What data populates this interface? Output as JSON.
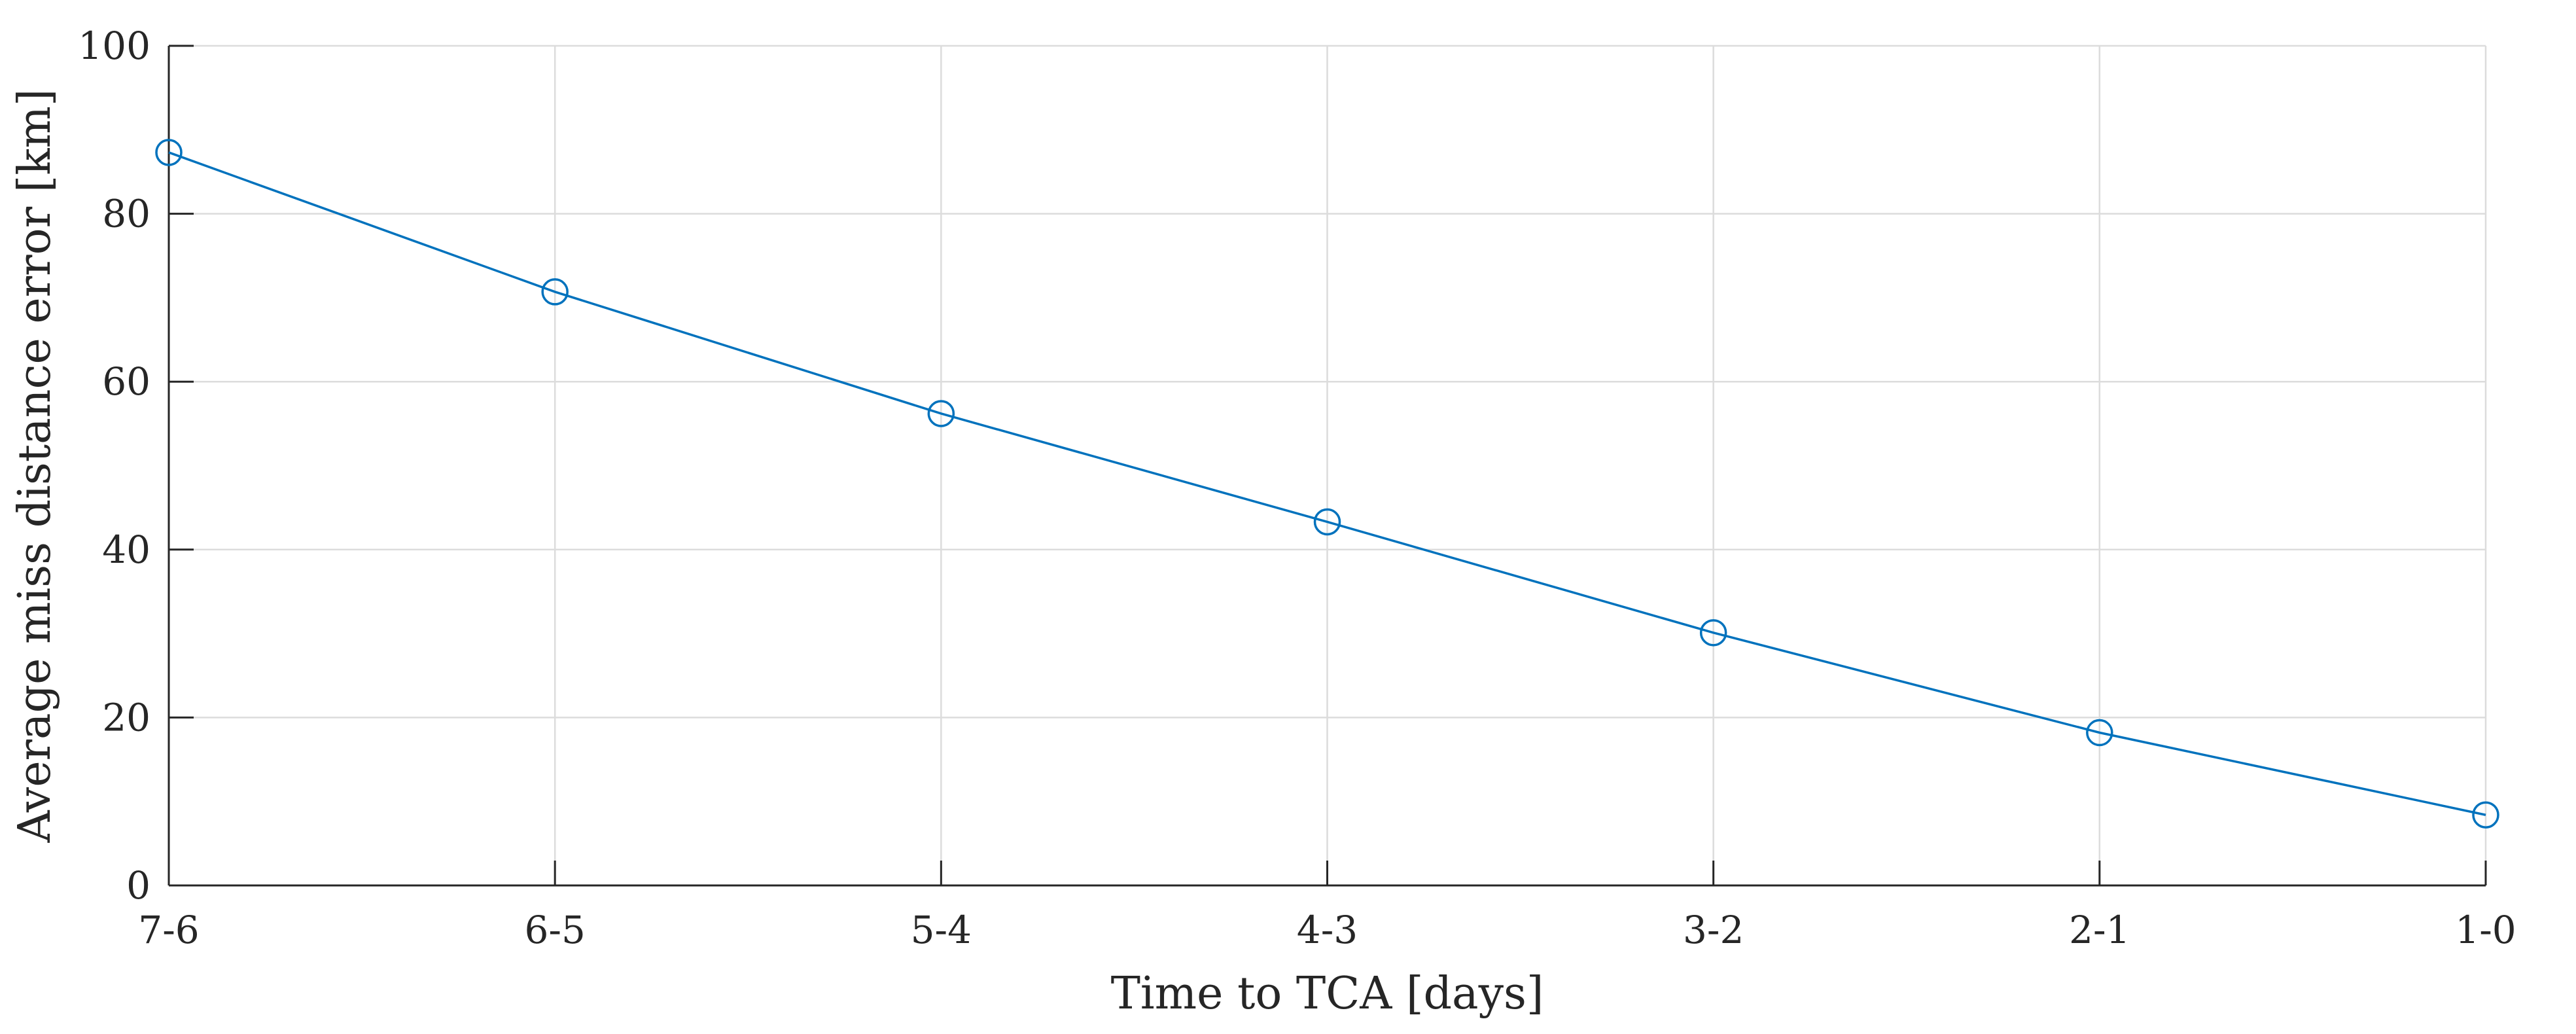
{
  "chart_data": {
    "type": "line",
    "title": "",
    "xlabel": "Time to TCA [days]",
    "ylabel": "Average miss distance error [km]",
    "categories": [
      "7-6",
      "6-5",
      "5-4",
      "4-3",
      "3-2",
      "2-1",
      "1-0"
    ],
    "series": [
      {
        "values": [
          87.3,
          70.7,
          56.2,
          43.3,
          30.1,
          18.2,
          8.4
        ]
      }
    ],
    "ylim": [
      0,
      100
    ],
    "yticks": [
      0,
      20,
      40,
      60,
      80,
      100
    ],
    "grid": true,
    "marker": "circle",
    "colors": {
      "series": "#0072bd",
      "grid": "#dcdcdc",
      "axis": "#262626"
    }
  }
}
